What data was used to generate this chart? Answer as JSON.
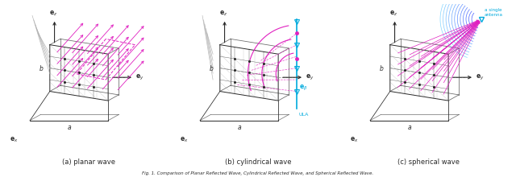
{
  "caption": "Fig. 1. Comparison of Planar Reflected Wave, Cylindrical Reflected Wave, and Spherical Reflected Wave.",
  "subfig_labels": [
    "(a) planar wave",
    "(b) cylindrical wave",
    "(c) spherical wave"
  ],
  "panel_color": "#2a2a2a",
  "magenta": "#e020c0",
  "cyan": "#00aadd",
  "light_cyan": "#88ddff",
  "bg_color": "#ffffff",
  "dashed_color": "#999999",
  "gray_incident": "#aaaaaa"
}
